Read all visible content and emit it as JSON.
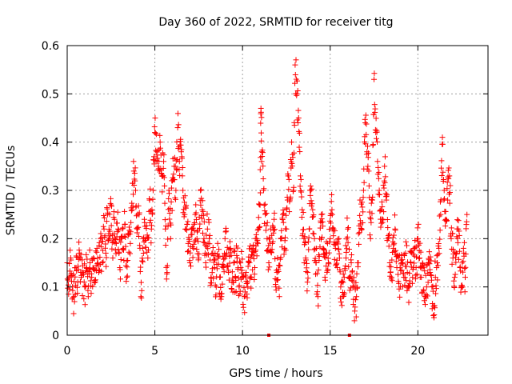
{
  "chart_data": {
    "type": "scatter",
    "title": "Day 360 of 2022, SRMTID for receiver titg",
    "xlabel": "GPS time / hours",
    "ylabel": "SRMTID / TECUs",
    "xlim": [
      0,
      24
    ],
    "ylim": [
      0,
      0.6
    ],
    "xticks": [
      0,
      5,
      10,
      15,
      20
    ],
    "xtick_labels": [
      "0",
      "5",
      "10",
      "15",
      "20"
    ],
    "yticks": [
      0,
      0.1,
      0.2,
      0.3,
      0.4,
      0.5,
      0.6
    ],
    "ytick_labels": [
      "0",
      "0.1",
      "0.2",
      "0.3",
      "0.4",
      "0.5",
      "0.6"
    ],
    "grid": true,
    "marker": "+",
    "color": "#ff0000",
    "series": [
      {
        "name": "SRMTID",
        "points": [
          [
            0.0,
            0.15
          ],
          [
            0.1,
            0.12
          ],
          [
            0.2,
            0.16
          ],
          [
            0.3,
            0.1
          ],
          [
            0.4,
            0.08
          ],
          [
            0.5,
            0.14
          ],
          [
            0.6,
            0.11
          ],
          [
            0.7,
            0.17
          ],
          [
            0.8,
            0.12
          ],
          [
            0.9,
            0.13
          ],
          [
            1.0,
            0.1
          ],
          [
            1.1,
            0.14
          ],
          [
            1.2,
            0.08
          ],
          [
            1.3,
            0.15
          ],
          [
            1.4,
            0.12
          ],
          [
            1.5,
            0.16
          ],
          [
            1.6,
            0.11
          ],
          [
            1.7,
            0.18
          ],
          [
            1.8,
            0.13
          ],
          [
            1.9,
            0.2
          ],
          [
            2.0,
            0.15
          ],
          [
            2.1,
            0.22
          ],
          [
            2.2,
            0.17
          ],
          [
            2.3,
            0.25
          ],
          [
            2.4,
            0.2
          ],
          [
            2.5,
            0.27
          ],
          [
            2.6,
            0.16
          ],
          [
            2.7,
            0.24
          ],
          [
            2.8,
            0.19
          ],
          [
            2.9,
            0.22
          ],
          [
            3.0,
            0.14
          ],
          [
            3.1,
            0.2
          ],
          [
            3.2,
            0.18
          ],
          [
            3.3,
            0.23
          ],
          [
            3.4,
            0.12
          ],
          [
            3.5,
            0.21
          ],
          [
            3.6,
            0.19
          ],
          [
            3.7,
            0.26
          ],
          [
            3.8,
            0.34
          ],
          [
            3.9,
            0.3
          ],
          [
            4.0,
            0.22
          ],
          [
            4.1,
            0.25
          ],
          [
            4.2,
            0.08
          ],
          [
            4.3,
            0.18
          ],
          [
            4.4,
            0.24
          ],
          [
            4.5,
            0.2
          ],
          [
            4.6,
            0.16
          ],
          [
            4.7,
            0.28
          ],
          [
            4.8,
            0.22
          ],
          [
            4.9,
            0.3
          ],
          [
            5.0,
            0.42
          ],
          [
            5.1,
            0.38
          ],
          [
            5.2,
            0.35
          ],
          [
            5.3,
            0.4
          ],
          [
            5.4,
            0.33
          ],
          [
            5.5,
            0.36
          ],
          [
            5.6,
            0.22
          ],
          [
            5.7,
            0.13
          ],
          [
            5.8,
            0.3
          ],
          [
            5.9,
            0.2
          ],
          [
            6.0,
            0.32
          ],
          [
            6.1,
            0.35
          ],
          [
            6.2,
            0.3
          ],
          [
            6.3,
            0.43
          ],
          [
            6.4,
            0.36
          ],
          [
            6.5,
            0.38
          ],
          [
            6.6,
            0.3
          ],
          [
            6.7,
            0.25
          ],
          [
            6.8,
            0.22
          ],
          [
            6.9,
            0.19
          ],
          [
            7.0,
            0.15
          ],
          [
            7.1,
            0.22
          ],
          [
            7.2,
            0.18
          ],
          [
            7.3,
            0.25
          ],
          [
            7.4,
            0.2
          ],
          [
            7.5,
            0.16
          ],
          [
            7.6,
            0.3
          ],
          [
            7.7,
            0.26
          ],
          [
            7.8,
            0.2
          ],
          [
            7.9,
            0.15
          ],
          [
            8.0,
            0.22
          ],
          [
            8.1,
            0.2
          ],
          [
            8.2,
            0.12
          ],
          [
            8.3,
            0.17
          ],
          [
            8.4,
            0.14
          ],
          [
            8.5,
            0.1
          ],
          [
            8.6,
            0.16
          ],
          [
            8.7,
            0.12
          ],
          [
            8.8,
            0.08
          ],
          [
            8.9,
            0.14
          ],
          [
            9.0,
            0.2
          ],
          [
            9.1,
            0.17
          ],
          [
            9.2,
            0.13
          ],
          [
            9.3,
            0.18
          ],
          [
            9.4,
            0.11
          ],
          [
            9.5,
            0.15
          ],
          [
            9.6,
            0.12
          ],
          [
            9.7,
            0.16
          ],
          [
            9.8,
            0.1
          ],
          [
            9.9,
            0.14
          ],
          [
            10.0,
            0.12
          ],
          [
            10.1,
            0.08
          ],
          [
            10.2,
            0.13
          ],
          [
            10.3,
            0.1
          ],
          [
            10.4,
            0.15
          ],
          [
            10.5,
            0.12
          ],
          [
            10.6,
            0.18
          ],
          [
            10.7,
            0.14
          ],
          [
            10.8,
            0.2
          ],
          [
            10.9,
            0.22
          ],
          [
            11.0,
            0.27
          ],
          [
            11.05,
            0.47
          ],
          [
            11.1,
            0.38
          ],
          [
            11.2,
            0.3
          ],
          [
            11.3,
            0.25
          ],
          [
            11.4,
            0.2
          ],
          [
            11.5,
            0.15
          ],
          [
            11.6,
            0.22
          ],
          [
            11.7,
            0.19
          ],
          [
            11.8,
            0.24
          ],
          [
            11.9,
            0.1
          ],
          [
            12.0,
            0.16
          ],
          [
            12.1,
            0.08
          ],
          [
            12.2,
            0.2
          ],
          [
            12.3,
            0.25
          ],
          [
            12.4,
            0.18
          ],
          [
            12.5,
            0.22
          ],
          [
            12.6,
            0.33
          ],
          [
            12.7,
            0.28
          ],
          [
            12.8,
            0.4
          ],
          [
            12.9,
            0.3
          ],
          [
            13.0,
            0.56
          ],
          [
            13.1,
            0.5
          ],
          [
            13.2,
            0.45
          ],
          [
            13.3,
            0.33
          ],
          [
            13.4,
            0.26
          ],
          [
            13.5,
            0.2
          ],
          [
            13.6,
            0.16
          ],
          [
            13.7,
            0.11
          ],
          [
            13.8,
            0.22
          ],
          [
            13.9,
            0.3
          ],
          [
            14.0,
            0.26
          ],
          [
            14.1,
            0.2
          ],
          [
            14.2,
            0.15
          ],
          [
            14.3,
            0.08
          ],
          [
            14.4,
            0.2
          ],
          [
            14.5,
            0.25
          ],
          [
            14.6,
            0.18
          ],
          [
            14.7,
            0.12
          ],
          [
            14.8,
            0.17
          ],
          [
            14.9,
            0.15
          ],
          [
            15.0,
            0.2
          ],
          [
            15.1,
            0.26
          ],
          [
            15.2,
            0.22
          ],
          [
            15.3,
            0.18
          ],
          [
            15.4,
            0.14
          ],
          [
            15.5,
            0.2
          ],
          [
            15.6,
            0.1
          ],
          [
            15.7,
            0.08
          ],
          [
            15.8,
            0.12
          ],
          [
            15.9,
            0.16
          ],
          [
            16.0,
            0.22
          ],
          [
            16.1,
            0.12
          ],
          [
            16.2,
            0.15
          ],
          [
            16.3,
            0.1
          ],
          [
            16.4,
            0.05
          ],
          [
            16.5,
            0.08
          ],
          [
            16.6,
            0.15
          ],
          [
            16.7,
            0.28
          ],
          [
            16.8,
            0.22
          ],
          [
            16.9,
            0.3
          ],
          [
            17.0,
            0.44
          ],
          [
            17.1,
            0.38
          ],
          [
            17.2,
            0.34
          ],
          [
            17.3,
            0.2
          ],
          [
            17.4,
            0.28
          ],
          [
            17.5,
            0.53
          ],
          [
            17.6,
            0.42
          ],
          [
            17.7,
            0.36
          ],
          [
            17.8,
            0.3
          ],
          [
            17.9,
            0.26
          ],
          [
            18.0,
            0.24
          ],
          [
            18.1,
            0.35
          ],
          [
            18.2,
            0.28
          ],
          [
            18.3,
            0.2
          ],
          [
            18.4,
            0.15
          ],
          [
            18.5,
            0.12
          ],
          [
            18.6,
            0.18
          ],
          [
            18.7,
            0.22
          ],
          [
            18.8,
            0.14
          ],
          [
            18.9,
            0.16
          ],
          [
            19.0,
            0.1
          ],
          [
            19.1,
            0.15
          ],
          [
            19.2,
            0.12
          ],
          [
            19.3,
            0.17
          ],
          [
            19.4,
            0.13
          ],
          [
            19.5,
            0.1
          ],
          [
            19.6,
            0.15
          ],
          [
            19.7,
            0.12
          ],
          [
            19.8,
            0.18
          ],
          [
            19.9,
            0.14
          ],
          [
            20.0,
            0.2
          ],
          [
            20.1,
            0.16
          ],
          [
            20.2,
            0.12
          ],
          [
            20.3,
            0.14
          ],
          [
            20.4,
            0.08
          ],
          [
            20.5,
            0.1
          ],
          [
            20.6,
            0.15
          ],
          [
            20.7,
            0.13
          ],
          [
            20.8,
            0.1
          ],
          [
            20.9,
            0.06
          ],
          [
            21.0,
            0.12
          ],
          [
            21.1,
            0.15
          ],
          [
            21.2,
            0.18
          ],
          [
            21.3,
            0.25
          ],
          [
            21.4,
            0.41
          ],
          [
            21.5,
            0.3
          ],
          [
            21.6,
            0.24
          ],
          [
            21.7,
            0.28
          ],
          [
            21.8,
            0.33
          ],
          [
            21.9,
            0.2
          ],
          [
            22.0,
            0.16
          ],
          [
            22.1,
            0.12
          ],
          [
            22.2,
            0.17
          ],
          [
            22.3,
            0.22
          ],
          [
            22.4,
            0.14
          ],
          [
            22.5,
            0.1
          ],
          [
            22.6,
            0.18
          ],
          [
            22.7,
            0.12
          ],
          [
            22.8,
            0.25
          ]
        ]
      }
    ],
    "axis_markers": [
      [
        11.5,
        0
      ],
      [
        16.1,
        0
      ]
    ]
  }
}
